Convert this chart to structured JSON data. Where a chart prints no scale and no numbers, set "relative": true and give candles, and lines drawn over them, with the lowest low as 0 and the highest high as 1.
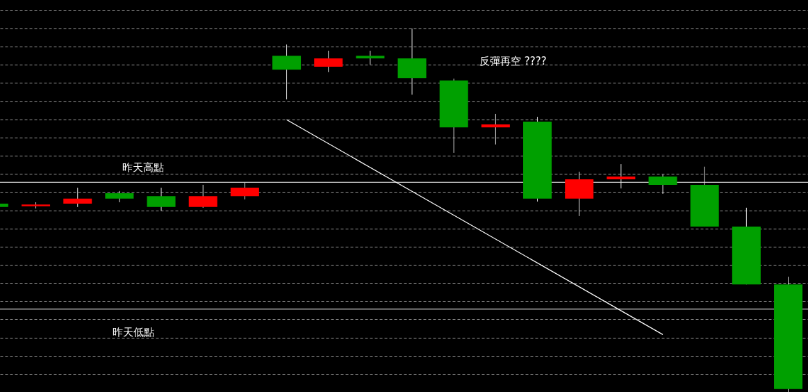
{
  "chart_data": {
    "type": "candlestick",
    "relative": true,
    "categories": [
      null,
      null,
      null,
      null,
      null,
      null,
      null,
      null,
      null,
      null,
      null,
      null,
      null,
      null,
      null,
      null,
      null,
      null,
      null,
      null
    ],
    "ohlc": [
      [
        0.518,
        0.518,
        0.509,
        0.509
      ],
      [
        0.511,
        0.522,
        0.505,
        0.516
      ],
      [
        0.518,
        0.562,
        0.509,
        0.532
      ],
      [
        0.547,
        0.553,
        0.522,
        0.532
      ],
      [
        0.539,
        0.562,
        0.499,
        0.509
      ],
      [
        0.509,
        0.57,
        0.507,
        0.539
      ],
      [
        0.539,
        0.576,
        0.53,
        0.562
      ],
      [
        0.925,
        0.956,
        0.805,
        0.887
      ],
      [
        0.895,
        0.939,
        0.88,
        0.918
      ],
      [
        0.925,
        0.939,
        0.901,
        0.918
      ],
      [
        0.918,
        1.0,
        0.818,
        0.864
      ],
      [
        0.857,
        0.862,
        0.658,
        0.728
      ],
      [
        0.728,
        0.765,
        0.681,
        0.736
      ],
      [
        0.744,
        0.757,
        0.524,
        0.532
      ],
      [
        0.532,
        0.606,
        0.484,
        0.585
      ],
      [
        0.585,
        0.627,
        0.56,
        0.593
      ],
      [
        0.593,
        0.598,
        0.545,
        0.57
      ],
      [
        0.57,
        0.62,
        0.455,
        0.455
      ],
      [
        0.455,
        0.507,
        0.296,
        0.296
      ],
      [
        0.296,
        0.317,
        0,
        0.008
      ]
    ],
    "colors": [
      "#00a000",
      "#ff0000",
      "#ff0000",
      "#00a000",
      "#00a000",
      "#ff0000",
      "#ff0000",
      "#00a000",
      "#ff0000",
      "#00a000",
      "#00a000",
      "#00a000",
      "#ff0000",
      "#00a000",
      "#ff0000",
      "#ff0000",
      "#00a000",
      "#00a000",
      "#00a000",
      "#00a000"
    ],
    "series": [
      {
        "type": "line",
        "color": "#ffffff",
        "values": [
          null,
          null,
          null,
          null,
          null,
          null,
          null,
          0.749,
          null,
          null,
          null,
          null,
          null,
          null,
          null,
          null,
          0.158,
          null,
          null,
          null
        ]
      }
    ],
    "ref_lines": [
      {
        "axis": "y",
        "value": 0.577,
        "label": "昨天高點",
        "color": "#ffffff"
      },
      {
        "axis": "y",
        "value": 0.228,
        "label": "昨天低點",
        "color": "#ffffff"
      }
    ],
    "annotations": [
      "反彈再空  ????"
    ],
    "grid": true
  }
}
